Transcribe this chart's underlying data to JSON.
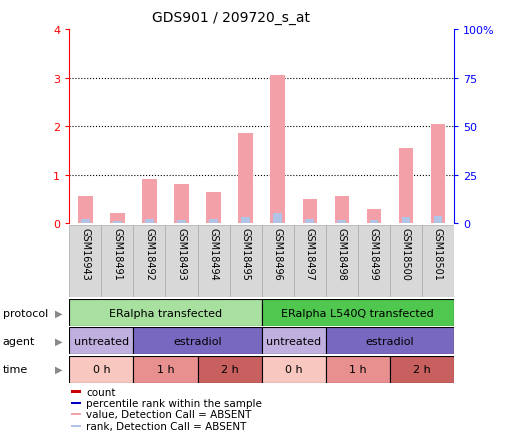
{
  "title": "GDS901 / 209720_s_at",
  "samples": [
    "GSM16943",
    "GSM18491",
    "GSM18492",
    "GSM18493",
    "GSM18494",
    "GSM18495",
    "GSM18496",
    "GSM18497",
    "GSM18498",
    "GSM18499",
    "GSM18500",
    "GSM18501"
  ],
  "values": [
    0.55,
    0.2,
    0.9,
    0.8,
    0.65,
    1.85,
    3.05,
    0.5,
    0.55,
    0.3,
    1.55,
    2.05
  ],
  "ranks": [
    0.08,
    0.05,
    0.08,
    0.06,
    0.09,
    0.12,
    0.2,
    0.08,
    0.06,
    0.06,
    0.12,
    0.15
  ],
  "ylim": [
    0,
    4
  ],
  "yticks_left": [
    0,
    1,
    2,
    3,
    4
  ],
  "yticks_right": [
    0,
    25,
    50,
    75,
    100
  ],
  "bar_color_value": "#f4a0a8",
  "bar_color_rank": "#b0c4e8",
  "protocol_groups": [
    {
      "label": "ERalpha transfected",
      "start": 0,
      "end": 6,
      "color": "#a8e0a0"
    },
    {
      "label": "ERalpha L540Q transfected",
      "start": 6,
      "end": 12,
      "color": "#50c850"
    }
  ],
  "agent_groups": [
    {
      "label": "untreated",
      "start": 0,
      "end": 2,
      "color": "#c0b0e0"
    },
    {
      "label": "estradiol",
      "start": 2,
      "end": 6,
      "color": "#7868c0"
    },
    {
      "label": "untreated",
      "start": 6,
      "end": 8,
      "color": "#c0b0e0"
    },
    {
      "label": "estradiol",
      "start": 8,
      "end": 12,
      "color": "#7868c0"
    }
  ],
  "time_groups": [
    {
      "label": "0 h",
      "start": 0,
      "end": 2,
      "color": "#f8c8c0"
    },
    {
      "label": "1 h",
      "start": 2,
      "end": 4,
      "color": "#e89090"
    },
    {
      "label": "2 h",
      "start": 4,
      "end": 6,
      "color": "#c86060"
    },
    {
      "label": "0 h",
      "start": 6,
      "end": 8,
      "color": "#f8c8c0"
    },
    {
      "label": "1 h",
      "start": 8,
      "end": 10,
      "color": "#e89090"
    },
    {
      "label": "2 h",
      "start": 10,
      "end": 12,
      "color": "#c86060"
    }
  ],
  "legend_items": [
    {
      "label": "count",
      "color": "#cc0000"
    },
    {
      "label": "percentile rank within the sample",
      "color": "#0000cc"
    },
    {
      "label": "value, Detection Call = ABSENT",
      "color": "#f4a0a8"
    },
    {
      "label": "rank, Detection Call = ABSENT",
      "color": "#b0c4e8"
    }
  ],
  "bg_color": "#ffffff"
}
